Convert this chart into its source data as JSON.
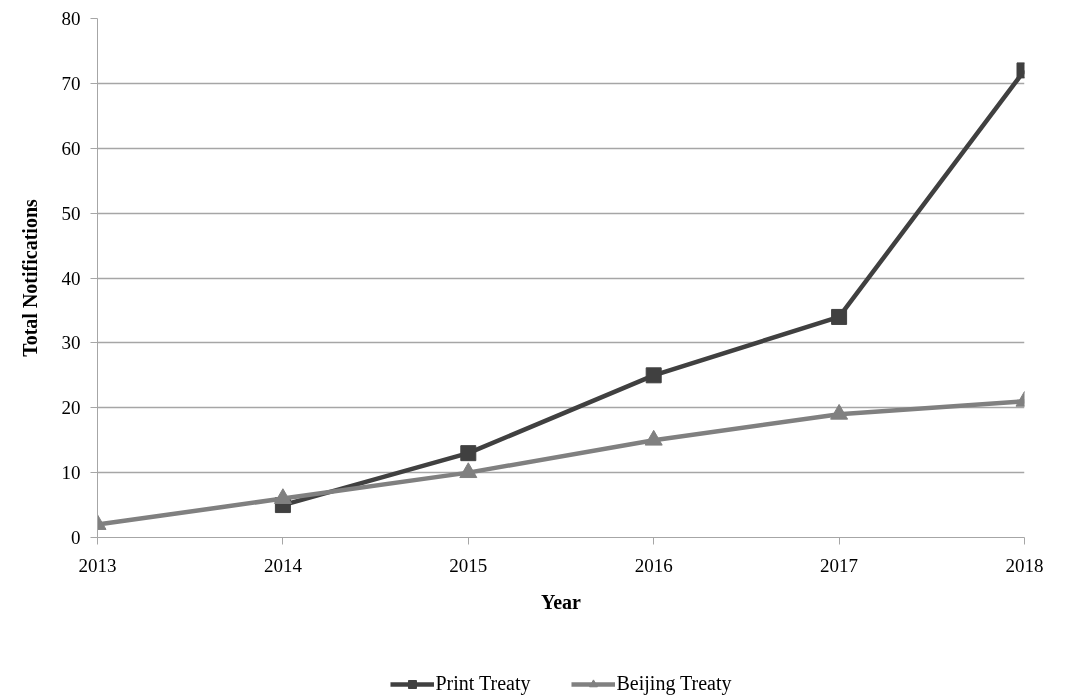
{
  "chart_data": {
    "type": "line",
    "xlabel": "Year",
    "ylabel": "Total Notifications",
    "x": [
      2013,
      2014,
      2015,
      2016,
      2017,
      2018
    ],
    "series": [
      {
        "name": "Print Treaty",
        "color": "#404040",
        "marker": "square",
        "values": [
          null,
          5,
          13,
          25,
          34,
          72
        ]
      },
      {
        "name": "Beijing Treaty",
        "color": "#808080",
        "marker": "triangle",
        "values": [
          2,
          6,
          10,
          15,
          19,
          21
        ]
      }
    ],
    "xlim": [
      2013,
      2018
    ],
    "xticks": [
      2013,
      2014,
      2015,
      2016,
      2017,
      2018
    ],
    "ylim": [
      0,
      80
    ],
    "yticks": [
      0,
      10,
      20,
      30,
      40,
      50,
      60,
      70,
      80
    ],
    "grid": "y",
    "legend": "bottom",
    "line_style": "solid"
  }
}
